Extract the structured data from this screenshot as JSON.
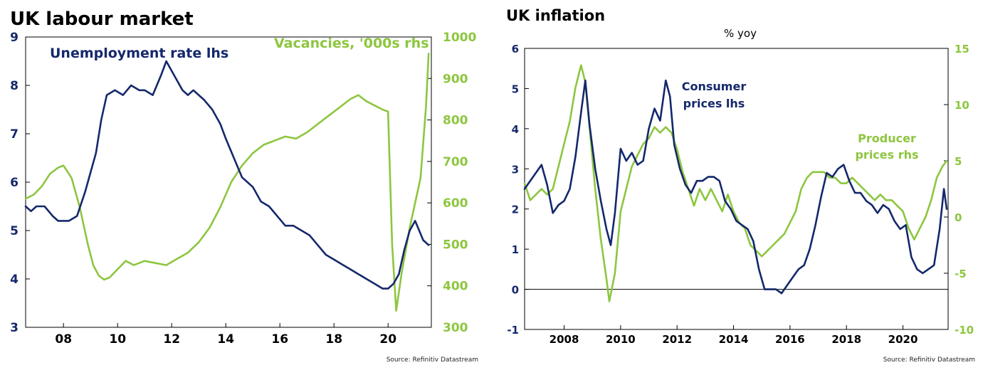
{
  "colors": {
    "navy": "#14286b",
    "green": "#8dc63f",
    "axis": "#000000"
  },
  "chart_data": [
    {
      "type": "line",
      "title": "UK labour market",
      "source": "Source: Refinitiv Datastream",
      "xlim": [
        2006.6,
        2021.6
      ],
      "x_ticks": [
        2008,
        2010,
        2012,
        2014,
        2016,
        2018,
        2020
      ],
      "x_tick_labels": [
        "08",
        "10",
        "12",
        "14",
        "16",
        "18",
        "20"
      ],
      "y_left": {
        "lim": [
          3,
          9
        ],
        "ticks": [
          3,
          4,
          5,
          6,
          7,
          8,
          9
        ]
      },
      "y_right": {
        "lim": [
          300,
          1000
        ],
        "ticks": [
          300,
          400,
          500,
          600,
          700,
          800,
          900,
          1000
        ]
      },
      "grid": false,
      "series": [
        {
          "name": "Unemployment rate lhs",
          "axis": "left",
          "color": "navy",
          "x": [
            2006.6,
            2006.8,
            2007.0,
            2007.3,
            2007.6,
            2007.8,
            2008.2,
            2008.5,
            2008.8,
            2009.0,
            2009.2,
            2009.4,
            2009.6,
            2009.9,
            2010.2,
            2010.5,
            2010.8,
            2011.0,
            2011.3,
            2011.6,
            2011.8,
            2012.0,
            2012.2,
            2012.4,
            2012.6,
            2012.8,
            2013.0,
            2013.2,
            2013.5,
            2013.8,
            2014.0,
            2014.3,
            2014.6,
            2015.0,
            2015.3,
            2015.6,
            2015.9,
            2016.2,
            2016.5,
            2016.8,
            2017.1,
            2017.4,
            2017.7,
            2018.0,
            2018.3,
            2018.6,
            2018.9,
            2019.2,
            2019.5,
            2019.8,
            2020.0,
            2020.2,
            2020.4,
            2020.6,
            2020.8,
            2021.0,
            2021.3,
            2021.5
          ],
          "y": [
            5.5,
            5.4,
            5.5,
            5.5,
            5.3,
            5.2,
            5.2,
            5.3,
            5.8,
            6.2,
            6.6,
            7.3,
            7.8,
            7.9,
            7.8,
            8.0,
            7.9,
            7.9,
            7.8,
            8.2,
            8.5,
            8.3,
            8.1,
            7.9,
            7.8,
            7.9,
            7.8,
            7.7,
            7.5,
            7.2,
            6.9,
            6.5,
            6.1,
            5.9,
            5.6,
            5.5,
            5.3,
            5.1,
            5.1,
            5.0,
            4.9,
            4.7,
            4.5,
            4.4,
            4.3,
            4.2,
            4.1,
            4.0,
            3.9,
            3.8,
            3.8,
            3.9,
            4.1,
            4.6,
            5.0,
            5.2,
            4.8,
            4.7
          ]
        },
        {
          "name": "Vacancies, '000s rhs",
          "axis": "right",
          "color": "green",
          "x": [
            2006.6,
            2006.9,
            2007.2,
            2007.5,
            2007.8,
            2008.0,
            2008.3,
            2008.6,
            2008.9,
            2009.1,
            2009.3,
            2009.5,
            2009.7,
            2010.0,
            2010.3,
            2010.6,
            2011.0,
            2011.4,
            2011.8,
            2012.2,
            2012.6,
            2013.0,
            2013.4,
            2013.8,
            2014.2,
            2014.6,
            2015.0,
            2015.4,
            2015.8,
            2016.2,
            2016.6,
            2017.0,
            2017.4,
            2017.8,
            2018.2,
            2018.6,
            2018.9,
            2019.2,
            2019.5,
            2019.8,
            2020.0,
            2020.15,
            2020.3,
            2020.5,
            2020.8,
            2021.0,
            2021.2,
            2021.4,
            2021.5
          ],
          "y": [
            610,
            620,
            640,
            670,
            685,
            690,
            660,
            590,
            500,
            450,
            425,
            415,
            420,
            440,
            460,
            450,
            460,
            455,
            450,
            465,
            480,
            505,
            540,
            590,
            650,
            690,
            720,
            740,
            750,
            760,
            755,
            770,
            790,
            810,
            830,
            850,
            860,
            845,
            835,
            825,
            820,
            500,
            340,
            430,
            540,
            600,
            660,
            830,
            960
          ]
        }
      ],
      "annotations": [
        "Unemployment rate lhs",
        "Vacancies, '000s rhs"
      ]
    },
    {
      "type": "line",
      "title": "UK inflation",
      "subtitle": "% yoy",
      "source": "Source: Refinitiv Datastream",
      "xlim": [
        2006.6,
        2021.6
      ],
      "x_ticks": [
        2008,
        2010,
        2012,
        2014,
        2016,
        2018,
        2020
      ],
      "x_tick_labels": [
        "2008",
        "2010",
        "2012",
        "2014",
        "2016",
        "2018",
        "2020"
      ],
      "y_left": {
        "lim": [
          -1,
          6
        ],
        "ticks": [
          -1,
          0,
          1,
          2,
          3,
          4,
          5,
          6
        ]
      },
      "y_right": {
        "lim": [
          -10,
          15
        ],
        "ticks": [
          -10,
          -5,
          0,
          5,
          10,
          15
        ]
      },
      "grid": false,
      "zero_line": true,
      "series": [
        {
          "name": "Consumer prices lhs",
          "axis": "left",
          "color": "navy",
          "x": [
            2006.6,
            2006.8,
            2007.0,
            2007.2,
            2007.4,
            2007.6,
            2007.8,
            2008.0,
            2008.2,
            2008.4,
            2008.6,
            2008.75,
            2008.9,
            2009.1,
            2009.3,
            2009.5,
            2009.65,
            2009.8,
            2010.0,
            2010.2,
            2010.4,
            2010.6,
            2010.8,
            2011.0,
            2011.2,
            2011.4,
            2011.6,
            2011.75,
            2011.9,
            2012.1,
            2012.3,
            2012.5,
            2012.7,
            2012.9,
            2013.1,
            2013.3,
            2013.5,
            2013.7,
            2013.9,
            2014.1,
            2014.3,
            2014.5,
            2014.7,
            2014.9,
            2015.1,
            2015.3,
            2015.5,
            2015.7,
            2015.9,
            2016.1,
            2016.3,
            2016.5,
            2016.7,
            2016.9,
            2017.1,
            2017.3,
            2017.5,
            2017.7,
            2017.9,
            2018.1,
            2018.3,
            2018.5,
            2018.7,
            2018.9,
            2019.1,
            2019.3,
            2019.5,
            2019.7,
            2019.9,
            2020.1,
            2020.3,
            2020.5,
            2020.7,
            2020.9,
            2021.1,
            2021.3,
            2021.45,
            2021.55
          ],
          "y": [
            2.5,
            2.7,
            2.9,
            3.1,
            2.6,
            1.9,
            2.1,
            2.2,
            2.5,
            3.3,
            4.4,
            5.2,
            4.1,
            3.0,
            2.2,
            1.5,
            1.1,
            1.9,
            3.5,
            3.2,
            3.4,
            3.1,
            3.2,
            4.0,
            4.5,
            4.2,
            5.2,
            4.8,
            3.6,
            3.0,
            2.6,
            2.4,
            2.7,
            2.7,
            2.8,
            2.8,
            2.7,
            2.2,
            2.0,
            1.7,
            1.6,
            1.5,
            1.2,
            0.5,
            0.0,
            0.0,
            0.0,
            -0.1,
            0.1,
            0.3,
            0.5,
            0.6,
            1.0,
            1.6,
            2.3,
            2.9,
            2.8,
            3.0,
            3.1,
            2.7,
            2.4,
            2.4,
            2.2,
            2.1,
            1.9,
            2.1,
            2.0,
            1.7,
            1.5,
            1.6,
            0.8,
            0.5,
            0.4,
            0.5,
            0.6,
            1.5,
            2.5,
            2.0
          ]
        },
        {
          "name": "Producer prices rhs",
          "axis": "right",
          "color": "green",
          "x": [
            2006.6,
            2006.8,
            2007.0,
            2007.2,
            2007.4,
            2007.6,
            2007.8,
            2008.0,
            2008.2,
            2008.4,
            2008.6,
            2008.75,
            2008.9,
            2009.1,
            2009.3,
            2009.5,
            2009.6,
            2009.8,
            2010.0,
            2010.2,
            2010.4,
            2010.6,
            2010.8,
            2011.0,
            2011.2,
            2011.4,
            2011.6,
            2011.8,
            2012.0,
            2012.2,
            2012.4,
            2012.6,
            2012.8,
            2013.0,
            2013.2,
            2013.4,
            2013.6,
            2013.8,
            2014.0,
            2014.2,
            2014.4,
            2014.6,
            2014.8,
            2015.0,
            2015.2,
            2015.4,
            2015.6,
            2015.8,
            2016.0,
            2016.2,
            2016.4,
            2016.6,
            2016.8,
            2017.0,
            2017.2,
            2017.4,
            2017.6,
            2017.8,
            2018.0,
            2018.2,
            2018.4,
            2018.6,
            2018.8,
            2019.0,
            2019.2,
            2019.4,
            2019.6,
            2019.8,
            2020.0,
            2020.2,
            2020.4,
            2020.6,
            2020.8,
            2021.0,
            2021.2,
            2021.4,
            2021.55
          ],
          "y": [
            3.0,
            1.5,
            2.0,
            2.5,
            2.0,
            2.5,
            4.5,
            6.5,
            8.5,
            11.5,
            13.5,
            12.0,
            8.0,
            2.5,
            -2.0,
            -5.5,
            -7.5,
            -5.0,
            0.5,
            2.5,
            4.5,
            5.5,
            6.5,
            7.0,
            8.0,
            7.5,
            8.0,
            7.5,
            6.0,
            4.0,
            2.5,
            1.0,
            2.5,
            1.5,
            2.5,
            1.5,
            0.5,
            2.0,
            0.5,
            -0.5,
            -1.0,
            -2.5,
            -3.0,
            -3.5,
            -3.0,
            -2.5,
            -2.0,
            -1.5,
            -0.5,
            0.5,
            2.5,
            3.5,
            4.0,
            4.0,
            4.0,
            3.5,
            3.5,
            3.0,
            3.0,
            3.5,
            3.0,
            2.5,
            2.0,
            1.5,
            2.0,
            1.5,
            1.5,
            1.0,
            0.5,
            -1.0,
            -2.0,
            -1.0,
            0.0,
            1.5,
            3.5,
            4.5,
            5.0
          ]
        }
      ],
      "annotations": [
        "Consumer",
        "prices lhs",
        "Producer",
        "prices rhs"
      ]
    }
  ]
}
